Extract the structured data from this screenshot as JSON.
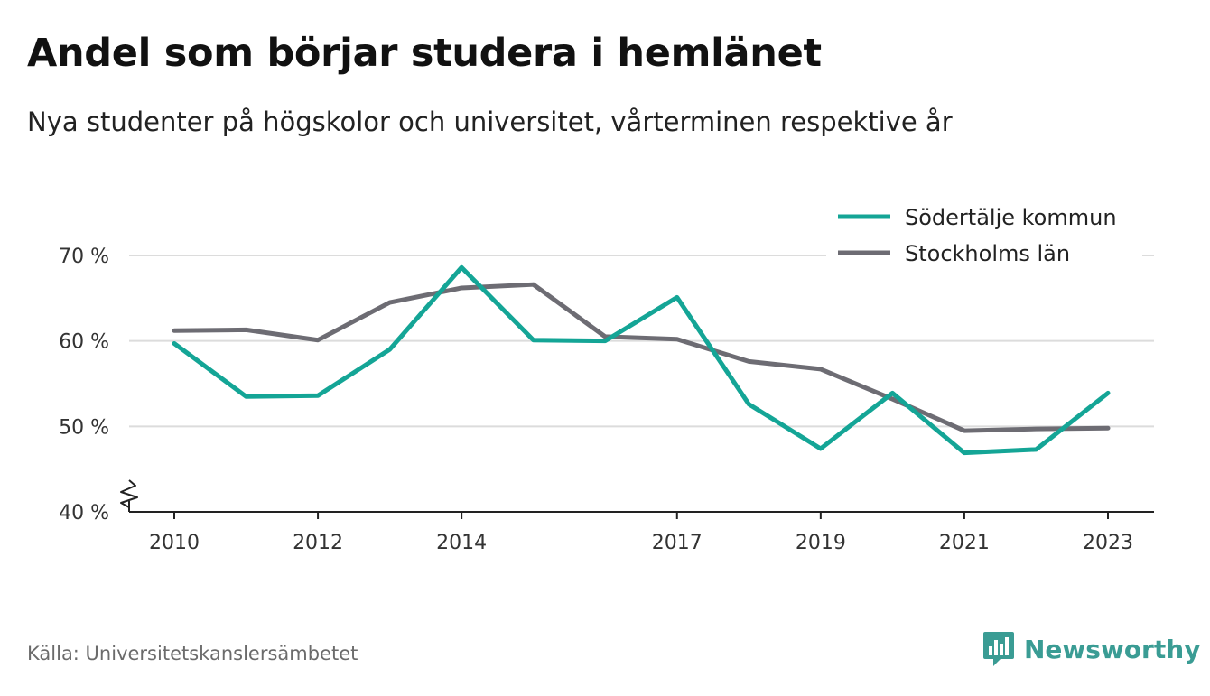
{
  "title": "Andel som börjar studera i hemlänet",
  "subtitle": "Nya studenter på högskolor och universitet, vårterminen respektive år",
  "source": "Källa: Universitetskanslersämbetet",
  "brand": {
    "name": "Newsworthy",
    "icon": "newsworthy-logo-icon",
    "color": "#3a9c94"
  },
  "chart_data": {
    "type": "line",
    "x": [
      2010,
      2011,
      2012,
      2013,
      2014,
      2015,
      2016,
      2017,
      2018,
      2019,
      2020,
      2021,
      2022,
      2023
    ],
    "x_tick_labels": [
      "2010",
      "2012",
      "2014",
      "2017",
      "2019",
      "2021",
      "2023"
    ],
    "y_tick_labels": [
      "40 %",
      "50 %",
      "60 %",
      "70 %"
    ],
    "y_ticks": [
      40,
      50,
      60,
      70
    ],
    "ylim": [
      40,
      70
    ],
    "y_axis_break": true,
    "grid": true,
    "legend_position": "top-right",
    "series": [
      {
        "name": "Södertälje kommun",
        "color": "#14a596",
        "values": [
          59.7,
          53.5,
          53.6,
          59.0,
          68.6,
          60.1,
          60.0,
          65.1,
          52.6,
          47.4,
          53.9,
          46.9,
          47.3,
          53.9
        ]
      },
      {
        "name": "Stockholms län",
        "color": "#6d6c73",
        "values": [
          61.2,
          61.3,
          60.1,
          64.5,
          66.2,
          66.6,
          60.5,
          60.2,
          57.6,
          56.7,
          53.2,
          49.5,
          49.7,
          49.8
        ]
      }
    ]
  }
}
